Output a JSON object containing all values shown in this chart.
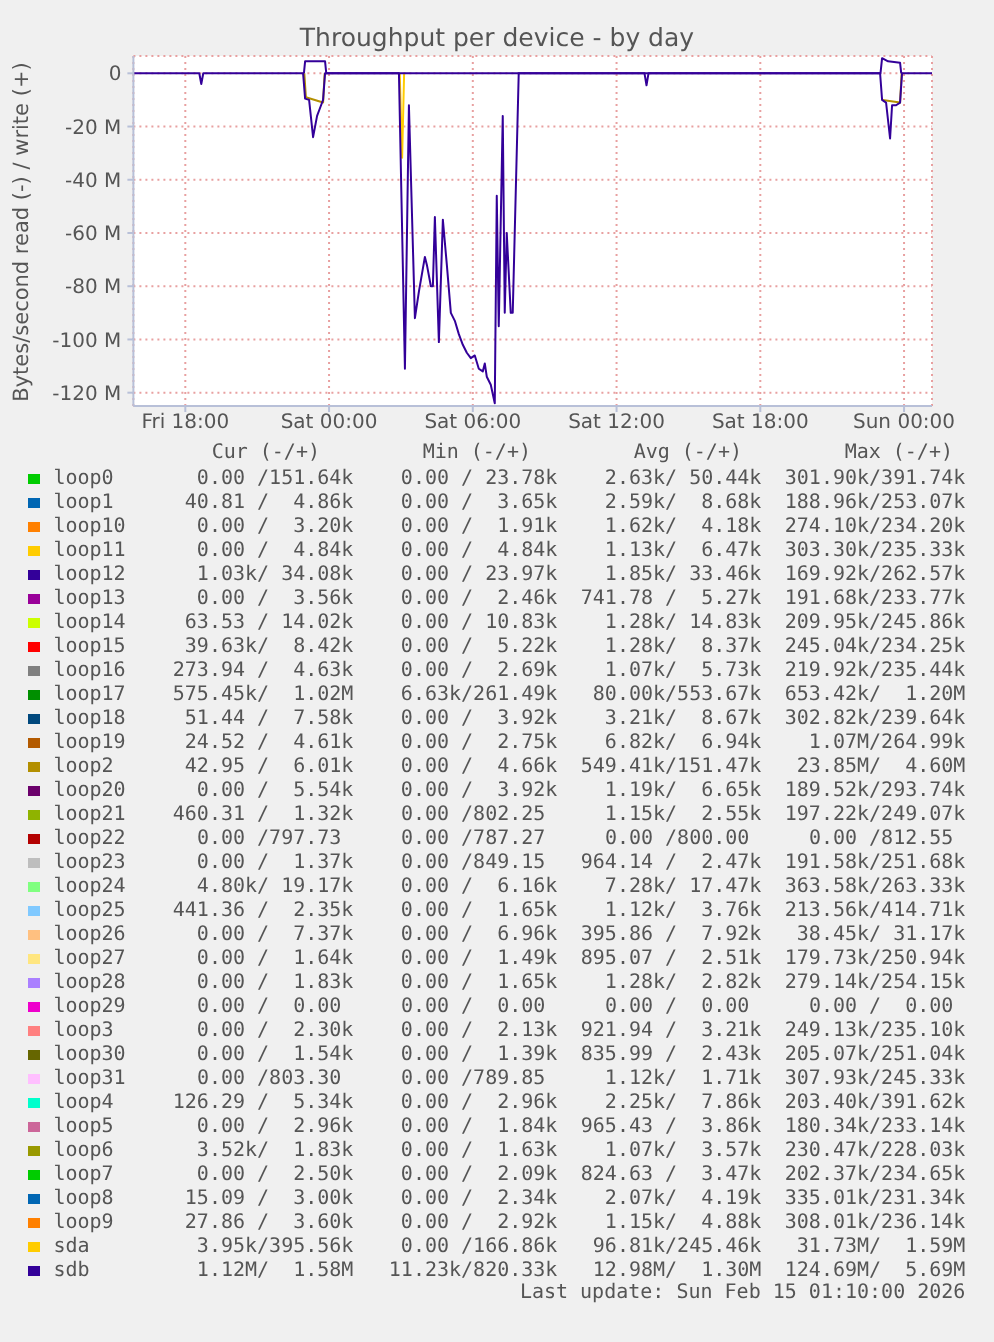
{
  "chart_data": {
    "type": "line",
    "title": "Throughput per device - by day",
    "ylabel": "Bytes/second read (-) / write (+)",
    "xlim": [
      "2026-02-13T15:50",
      "2026-02-15T01:10"
    ],
    "xticks": [
      {
        "value": "2026-02-13T18:00",
        "label": "Fri 18:00"
      },
      {
        "value": "2026-02-14T00:00",
        "label": "Sat 00:00"
      },
      {
        "value": "2026-02-14T06:00",
        "label": "Sat 06:00"
      },
      {
        "value": "2026-02-14T12:00",
        "label": "Sat 12:00"
      },
      {
        "value": "2026-02-14T18:00",
        "label": "Sat 18:00"
      },
      {
        "value": "2026-02-15T00:00",
        "label": "Sun 00:00"
      }
    ],
    "ylim": [
      -125,
      6.5
    ],
    "yticks": [
      {
        "value": -120,
        "label": "-120 M"
      },
      {
        "value": -100,
        "label": "-100 M"
      },
      {
        "value": -80,
        "label": "-80 M"
      },
      {
        "value": -60,
        "label": "-60 M"
      },
      {
        "value": -40,
        "label": "-40 M"
      },
      {
        "value": -20,
        "label": "-20 M"
      },
      0
    ],
    "grid": true,
    "legend": "bottom",
    "marker": "none",
    "series": [
      {
        "name": "loop0",
        "color": "#00cc00"
      },
      {
        "name": "loop1",
        "color": "#0066b3"
      },
      {
        "name": "loop10",
        "color": "#ff8000"
      },
      {
        "name": "loop11",
        "color": "#ffcc00"
      },
      {
        "name": "loop12",
        "color": "#330099"
      },
      {
        "name": "loop13",
        "color": "#990099"
      },
      {
        "name": "loop14",
        "color": "#ccff00"
      },
      {
        "name": "loop15",
        "color": "#ff0000"
      },
      {
        "name": "loop16",
        "color": "#808080"
      },
      {
        "name": "loop17",
        "color": "#008f00"
      },
      {
        "name": "loop18",
        "color": "#00487d"
      },
      {
        "name": "loop19",
        "color": "#b35a00"
      },
      {
        "name": "loop2",
        "color": "#b38f00",
        "x": [
          "2026-02-13T22:58",
          "2026-02-13T23:02",
          "2026-02-13T23:45",
          "2026-02-13T23:49",
          "2026-02-14T23:02",
          "2026-02-14T23:06",
          "2026-02-14T23:50",
          "2026-02-14T23:54"
        ],
        "values": [
          0,
          -9,
          -11,
          0,
          null,
          -10,
          -11,
          0
        ]
      },
      {
        "name": "loop20",
        "color": "#6b006b"
      },
      {
        "name": "loop21",
        "color": "#8fb300"
      },
      {
        "name": "loop22",
        "color": "#b30000"
      },
      {
        "name": "loop23",
        "color": "#bebebe"
      },
      {
        "name": "loop24",
        "color": "#80ff80"
      },
      {
        "name": "loop25",
        "color": "#80c9ff"
      },
      {
        "name": "loop26",
        "color": "#ffc080"
      },
      {
        "name": "loop27",
        "color": "#ffe680"
      },
      {
        "name": "loop28",
        "color": "#aa80ff"
      },
      {
        "name": "loop29",
        "color": "#ee00cc"
      },
      {
        "name": "loop3",
        "color": "#ff8080"
      },
      {
        "name": "loop30",
        "color": "#666600"
      },
      {
        "name": "loop31",
        "color": "#ffbfff"
      },
      {
        "name": "loop4",
        "color": "#00ffcc"
      },
      {
        "name": "loop5",
        "color": "#cc6699"
      },
      {
        "name": "loop6",
        "color": "#999900"
      },
      {
        "name": "loop7",
        "color": "#00cc00"
      },
      {
        "name": "loop8",
        "color": "#0066b3"
      },
      {
        "name": "loop9",
        "color": "#ff8000"
      },
      {
        "name": "sda",
        "color": "#ffcc00",
        "x": [
          "2026-02-14T02:57",
          "2026-02-14T03:03",
          "2026-02-14T03:08"
        ],
        "values": [
          0,
          -31.7,
          0
        ]
      },
      {
        "name": "sdb",
        "color": "#330099",
        "x": [
          "2026-02-13T15:50",
          "2026-02-13T18:35",
          "2026-02-13T18:40",
          "2026-02-13T18:45",
          "2026-02-13T22:55",
          "2026-02-13T23:00",
          "2026-02-13T23:10",
          "2026-02-13T23:20",
          "2026-02-13T23:30",
          "2026-02-13T23:40",
          "2026-02-13T23:45",
          "2026-02-13T23:50",
          "2026-02-14T02:55",
          "2026-02-14T03:10",
          "2026-02-14T03:20",
          "2026-02-14T03:35",
          "2026-02-14T03:45",
          "2026-02-14T04:00",
          "2026-02-14T04:05",
          "2026-02-14T04:15",
          "2026-02-14T04:20",
          "2026-02-14T04:25",
          "2026-02-14T04:35",
          "2026-02-14T04:45",
          "2026-02-14T04:55",
          "2026-02-14T05:05",
          "2026-02-14T05:15",
          "2026-02-14T05:25",
          "2026-02-14T05:35",
          "2026-02-14T05:45",
          "2026-02-14T05:55",
          "2026-02-14T06:05",
          "2026-02-14T06:15",
          "2026-02-14T06:25",
          "2026-02-14T06:30",
          "2026-02-14T06:35",
          "2026-02-14T06:45",
          "2026-02-14T06:55",
          "2026-02-14T07:00",
          "2026-02-14T07:05",
          "2026-02-14T07:15",
          "2026-02-14T07:20",
          "2026-02-14T07:25",
          "2026-02-14T07:35",
          "2026-02-14T07:40",
          "2026-02-14T07:55",
          "2026-02-14T13:10",
          "2026-02-14T13:15",
          "2026-02-14T13:20",
          "2026-02-14T23:00",
          "2026-02-14T23:05",
          "2026-02-14T23:15",
          "2026-02-14T23:25",
          "2026-02-14T23:30",
          "2026-02-14T23:40",
          "2026-02-14T23:50",
          "2026-02-14T23:55",
          "2026-02-15T01:10"
        ],
        "values": [
          0,
          0,
          -4,
          0,
          0,
          -9.5,
          -10,
          -24,
          -16,
          -12,
          -10,
          0,
          0,
          -111,
          -12,
          -92,
          -82,
          -69,
          -72,
          -80,
          -80,
          -54,
          -101,
          -55,
          -72,
          -90,
          -93,
          -98,
          -102,
          -105,
          -107,
          -106,
          -111,
          -112,
          -109,
          -114,
          -117,
          -124,
          -46,
          -95,
          -16,
          -90,
          -60,
          -90,
          -90,
          0,
          0,
          -4.5,
          0,
          0,
          -10,
          -11,
          -24.5,
          -12,
          -12,
          -11,
          0,
          0
        ]
      },
      {
        "color": "#330099",
        "x": [
          "2026-02-13T22:57",
          "2026-02-13T23:00",
          "2026-02-13T23:50",
          "2026-02-13T23:53",
          "2026-02-14T23:01",
          "2026-02-14T23:05",
          "2026-02-14T23:20",
          "2026-02-14T23:50",
          "2026-02-14T23:53"
        ],
        "values": [
          0,
          4.5,
          4.5,
          0,
          0,
          5.7,
          4.5,
          4,
          0
        ]
      }
    ],
    "annotations": [
      "Cur (-/+)",
      "Min (-/+)",
      "Avg (-/+)",
      "Max (-/+)",
      "0.00 /151.64k",
      "0.00 / 23.78k",
      "2.63k/ 50.44k",
      "301.90k/391.74k",
      "40.81 /  4.86k",
      "0.00 /  3.65k",
      "2.59k/  8.68k",
      "188.96k/253.07k",
      "0.00 /  3.20k",
      "0.00 /  1.91k",
      "1.62k/  4.18k",
      "274.10k/234.20k",
      "0.00 /  4.84k",
      "0.00 /  4.84k",
      "1.13k/  6.47k",
      "303.30k/235.33k",
      "1.03k/ 34.08k",
      "0.00 / 23.97k",
      "1.85k/ 33.46k",
      "169.92k/262.57k",
      "0.00 /  3.56k",
      "0.00 /  2.46k",
      "741.78 /  5.27k",
      "191.68k/233.77k",
      "63.53 / 14.02k",
      "0.00 / 10.83k",
      "1.28k/ 14.83k",
      "209.95k/245.86k",
      "39.63k/  8.42k",
      "0.00 /  5.22k",
      "1.28k/  8.37k",
      "245.04k/234.25k",
      "273.94 /  4.63k",
      "0.00 /  2.69k",
      "1.07k/  5.73k",
      "219.92k/235.44k",
      "575.45k/  1.02M",
      "6.63k/261.49k",
      "80.00k/553.67k",
      "653.42k/  1.20M",
      "51.44 /  7.58k",
      "0.00 /  3.92k",
      "3.21k/  8.67k",
      "302.82k/239.64k",
      "24.52 /  4.61k",
      "0.00 /  2.75k",
      "6.82k/  6.94k",
      "1.07M/264.99k",
      "42.95 /  6.01k",
      "0.00 /  4.66k",
      "549.41k/151.47k",
      "23.85M/  4.60M",
      "0.00 /  5.54k",
      "0.00 /  3.92k",
      "1.19k/  6.65k",
      "189.52k/293.74k",
      "460.31 /  1.32k",
      "0.00 /802.25",
      "1.15k/  2.55k",
      "197.22k/249.07k",
      "0.00 /797.73",
      "0.00 /787.27",
      "0.00 /800.00",
      "0.00 /812.55",
      "0.00 /  1.37k",
      "0.00 /849.15",
      "964.14 /  2.47k",
      "191.58k/251.68k",
      "4.80k/ 19.17k",
      "0.00 /  6.16k",
      "7.28k/ 17.47k",
      "363.58k/263.33k",
      "441.36 /  2.35k",
      "0.00 /  1.65k",
      "1.12k/  3.76k",
      "213.56k/414.71k",
      "0.00 /  7.37k",
      "0.00 /  6.96k",
      "395.86 /  7.92k",
      "38.45k/ 31.17k",
      "0.00 /  1.64k",
      "0.00 /  1.49k",
      "895.07 /  2.51k",
      "179.73k/250.94k",
      "0.00 /  1.83k",
      "0.00 /  1.65k",
      "1.28k/  2.82k",
      "279.14k/254.15k",
      "0.00 /  0.00",
      "0.00 /  0.00",
      "0.00 /  0.00",
      "0.00 /  0.00",
      "0.00 /  2.30k",
      "0.00 /  2.13k",
      "921.94 /  3.21k",
      "249.13k/235.10k",
      "0.00 /  1.54k",
      "0.00 /  1.39k",
      "835.99 /  2.43k",
      "205.07k/251.04k",
      "0.00 /803.30",
      "0.00 /789.85",
      "1.12k/  1.71k",
      "307.93k/245.33k",
      "126.29 /  5.34k",
      "0.00 /  2.96k",
      "2.25k/  7.86k",
      "203.40k/391.62k",
      "0.00 /  2.96k",
      "0.00 /  1.84k",
      "965.43 /  3.86k",
      "180.34k/233.14k",
      "3.52k/  1.83k",
      "0.00 /  1.63k",
      "1.07k/  3.57k",
      "230.47k/228.03k",
      "0.00 /  2.50k",
      "0.00 /  2.09k",
      "824.63 /  3.47k",
      "202.37k/234.65k",
      "15.09 /  3.00k",
      "0.00 /  2.34k",
      "2.07k/  4.19k",
      "335.01k/231.34k",
      "27.86 /  3.60k",
      "0.00 /  2.92k",
      "1.15k/  4.88k",
      "308.01k/236.14k",
      "3.95k/395.56k",
      "0.00 /166.86k",
      "96.81k/245.46k",
      "31.73M/  1.59M",
      "1.12M/  1.58M",
      "11.23k/820.33k",
      "12.98M/  1.30M",
      "124.69M/  5.69M",
      "Last update: Sun Feb 15 01:10:00 2026"
    ]
  }
}
